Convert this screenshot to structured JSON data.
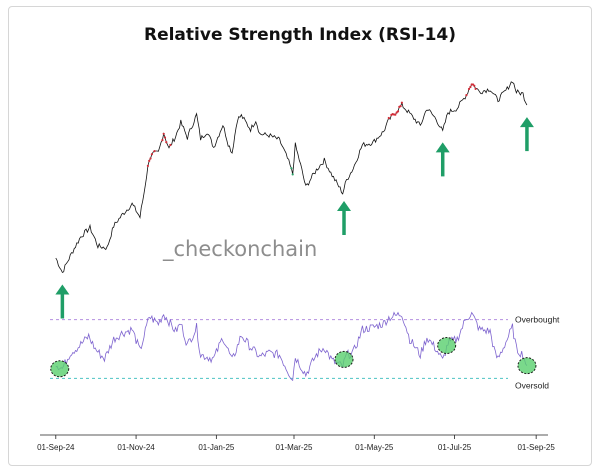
{
  "chart_data": {
    "type": "line",
    "title": "Relative Strength Index (RSI-14)",
    "watermark": "_checkonchain",
    "x_ticks": [
      "01-Sep-24",
      "01-Nov-24",
      "01-Jan-25",
      "01-Mar-25",
      "01-May-25",
      "01-Jul-25",
      "01-Sep-25"
    ],
    "xlim": [
      "2024-08-20",
      "2025-09-10"
    ],
    "price_series": {
      "name": "",
      "scale": "log",
      "points": [
        [
          "2024-09-01",
          57500
        ],
        [
          "2024-09-06",
          54000
        ],
        [
          "2024-09-12",
          58000
        ],
        [
          "2024-09-20",
          63000
        ],
        [
          "2024-09-27",
          65500
        ],
        [
          "2024-10-03",
          60500
        ],
        [
          "2024-10-10",
          60000
        ],
        [
          "2024-10-15",
          66000
        ],
        [
          "2024-10-21",
          69000
        ],
        [
          "2024-10-29",
          72500
        ],
        [
          "2024-11-04",
          68500
        ],
        [
          "2024-11-07",
          76000
        ],
        [
          "2024-11-11",
          88000
        ],
        [
          "2024-11-14",
          90000
        ],
        [
          "2024-11-18",
          90500
        ],
        [
          "2024-11-22",
          98500
        ],
        [
          "2024-11-26",
          92000
        ],
        [
          "2024-12-01",
          97000
        ],
        [
          "2024-12-05",
          103000
        ],
        [
          "2024-12-10",
          96500
        ],
        [
          "2024-12-17",
          106500
        ],
        [
          "2024-12-20",
          96000
        ],
        [
          "2024-12-25",
          99000
        ],
        [
          "2024-12-30",
          92500
        ],
        [
          "2025-01-06",
          102000
        ],
        [
          "2025-01-10",
          94000
        ],
        [
          "2025-01-13",
          90500
        ],
        [
          "2025-01-17",
          104500
        ],
        [
          "2025-01-20",
          106000
        ],
        [
          "2025-01-27",
          100000
        ],
        [
          "2025-01-31",
          104000
        ],
        [
          "2025-02-03",
          98000
        ],
        [
          "2025-02-10",
          97500
        ],
        [
          "2025-02-18",
          95500
        ],
        [
          "2025-02-25",
          87000
        ],
        [
          "2025-02-28",
          82500
        ],
        [
          "2025-03-02",
          93500
        ],
        [
          "2025-03-10",
          78000
        ],
        [
          "2025-03-18",
          84000
        ],
        [
          "2025-03-24",
          87500
        ],
        [
          "2025-03-30",
          82000
        ],
        [
          "2025-04-07",
          76000
        ],
        [
          "2025-04-10",
          80500
        ],
        [
          "2025-04-15",
          84500
        ],
        [
          "2025-04-22",
          93500
        ],
        [
          "2025-04-30",
          94500
        ],
        [
          "2025-05-08",
          99000
        ],
        [
          "2025-05-12",
          104000
        ],
        [
          "2025-05-22",
          111000
        ],
        [
          "2025-05-28",
          107000
        ],
        [
          "2025-06-05",
          101500
        ],
        [
          "2025-06-10",
          109500
        ],
        [
          "2025-06-17",
          104500
        ],
        [
          "2025-06-22",
          99000
        ],
        [
          "2025-06-26",
          107500
        ],
        [
          "2025-07-03",
          109500
        ],
        [
          "2025-07-10",
          116000
        ],
        [
          "2025-07-14",
          122000
        ],
        [
          "2025-07-20",
          117500
        ],
        [
          "2025-07-28",
          119000
        ],
        [
          "2025-08-01",
          115000
        ],
        [
          "2025-08-03",
          113500
        ],
        [
          "2025-08-10",
          119000
        ],
        [
          "2025-08-14",
          123500
        ],
        [
          "2025-08-17",
          117500
        ],
        [
          "2025-08-22",
          116500
        ],
        [
          "2025-08-25",
          111000
        ]
      ]
    },
    "rsi_series": {
      "name": "",
      "ylim": [
        0,
        100
      ],
      "points": [
        [
          "2024-09-01",
          35
        ],
        [
          "2024-09-06",
          30
        ],
        [
          "2024-09-12",
          46
        ],
        [
          "2024-09-18",
          52
        ],
        [
          "2024-09-26",
          63
        ],
        [
          "2024-10-01",
          50
        ],
        [
          "2024-10-08",
          40
        ],
        [
          "2024-10-15",
          60
        ],
        [
          "2024-10-21",
          66
        ],
        [
          "2024-10-29",
          70
        ],
        [
          "2024-11-04",
          48
        ],
        [
          "2024-11-11",
          83
        ],
        [
          "2024-11-18",
          76
        ],
        [
          "2024-11-22",
          86
        ],
        [
          "2024-12-01",
          68
        ],
        [
          "2024-12-05",
          76
        ],
        [
          "2024-12-10",
          54
        ],
        [
          "2024-12-17",
          72
        ],
        [
          "2024-12-20",
          44
        ],
        [
          "2024-12-30",
          40
        ],
        [
          "2025-01-06",
          62
        ],
        [
          "2025-01-13",
          38
        ],
        [
          "2025-01-20",
          64
        ],
        [
          "2025-01-27",
          52
        ],
        [
          "2025-02-03",
          42
        ],
        [
          "2025-02-10",
          46
        ],
        [
          "2025-02-18",
          44
        ],
        [
          "2025-02-25",
          26
        ],
        [
          "2025-02-28",
          20
        ],
        [
          "2025-03-02",
          42
        ],
        [
          "2025-03-10",
          24
        ],
        [
          "2025-03-18",
          44
        ],
        [
          "2025-03-24",
          52
        ],
        [
          "2025-03-30",
          38
        ],
        [
          "2025-04-07",
          32
        ],
        [
          "2025-04-10",
          44
        ],
        [
          "2025-04-15",
          46
        ],
        [
          "2025-04-22",
          70
        ],
        [
          "2025-04-30",
          72
        ],
        [
          "2025-05-08",
          76
        ],
        [
          "2025-05-12",
          82
        ],
        [
          "2025-05-22",
          86
        ],
        [
          "2025-05-28",
          60
        ],
        [
          "2025-06-05",
          44
        ],
        [
          "2025-06-10",
          62
        ],
        [
          "2025-06-17",
          50
        ],
        [
          "2025-06-22",
          38
        ],
        [
          "2025-06-26",
          56
        ],
        [
          "2025-07-03",
          60
        ],
        [
          "2025-07-10",
          82
        ],
        [
          "2025-07-14",
          86
        ],
        [
          "2025-07-20",
          70
        ],
        [
          "2025-07-28",
          68
        ],
        [
          "2025-08-01",
          44
        ],
        [
          "2025-08-03",
          40
        ],
        [
          "2025-08-10",
          60
        ],
        [
          "2025-08-14",
          72
        ],
        [
          "2025-08-17",
          50
        ],
        [
          "2025-08-22",
          44
        ],
        [
          "2025-08-25",
          33
        ]
      ]
    },
    "levels": [
      {
        "label": "Overbought",
        "value": 80,
        "color": "#b48ee0"
      },
      {
        "label": "Oversold",
        "value": 20,
        "color": "#4cc3c3"
      }
    ],
    "annotations": {
      "arrows_at": [
        "2024-09-06",
        "2025-04-08",
        "2025-06-22",
        "2025-08-25"
      ],
      "circles_at": [
        "2024-09-04",
        "2025-04-08",
        "2025-06-25",
        "2025-08-25"
      ]
    },
    "colors": {
      "price_line": "#111111",
      "rsi_line": "#7e64cf",
      "arrow": "#1f9e67",
      "circle_fill": "#59d06e",
      "overbought_dot": "#d22f3a",
      "oversold_dot": "#2ea36a"
    },
    "grid": false
  }
}
